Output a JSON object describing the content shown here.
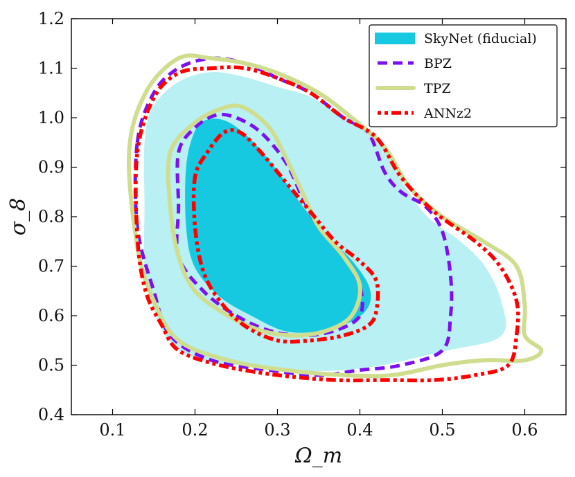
{
  "chart_data": {
    "type": "contour",
    "xlabel": "Ω_m",
    "ylabel": "σ_8",
    "xlim": [
      0.05,
      0.65
    ],
    "ylim": [
      0.4,
      1.2
    ],
    "xticks": [
      "0.1",
      "0.2",
      "0.3",
      "0.4",
      "0.5",
      "0.6"
    ],
    "yticks": [
      "0.4",
      "0.5",
      "0.6",
      "0.7",
      "0.8",
      "0.9",
      "1.0",
      "1.1",
      "1.2"
    ],
    "legend": {
      "placement": "top-right",
      "entries": [
        "SkyNet (fiducial)",
        "BPZ",
        "TPZ",
        "ANNz2"
      ]
    },
    "series": [
      {
        "name": "SkyNet (fiducial)",
        "style": "filled",
        "color": "#17c9e0",
        "color_light": "#b8f0f3",
        "outer": [
          [
            0.14,
            0.95
          ],
          [
            0.15,
            1.02
          ],
          [
            0.18,
            1.07
          ],
          [
            0.22,
            1.09
          ],
          [
            0.26,
            1.08
          ],
          [
            0.3,
            1.06
          ],
          [
            0.34,
            1.04
          ],
          [
            0.38,
            1.0
          ],
          [
            0.42,
            0.96
          ],
          [
            0.45,
            0.87
          ],
          [
            0.48,
            0.8
          ],
          [
            0.52,
            0.75
          ],
          [
            0.55,
            0.7
          ],
          [
            0.57,
            0.63
          ],
          [
            0.57,
            0.56
          ],
          [
            0.5,
            0.53
          ],
          [
            0.42,
            0.5
          ],
          [
            0.35,
            0.49
          ],
          [
            0.28,
            0.5
          ],
          [
            0.21,
            0.51
          ],
          [
            0.17,
            0.55
          ],
          [
            0.15,
            0.62
          ],
          [
            0.14,
            0.7
          ],
          [
            0.14,
            0.82
          ]
        ],
        "inner": [
          [
            0.19,
            0.9
          ],
          [
            0.2,
            0.97
          ],
          [
            0.215,
            0.995
          ],
          [
            0.24,
            0.99
          ],
          [
            0.27,
            0.95
          ],
          [
            0.3,
            0.89
          ],
          [
            0.33,
            0.82
          ],
          [
            0.36,
            0.76
          ],
          [
            0.39,
            0.71
          ],
          [
            0.41,
            0.66
          ],
          [
            0.41,
            0.62
          ],
          [
            0.39,
            0.59
          ],
          [
            0.35,
            0.57
          ],
          [
            0.31,
            0.57
          ],
          [
            0.27,
            0.6
          ],
          [
            0.23,
            0.64
          ],
          [
            0.2,
            0.7
          ],
          [
            0.19,
            0.78
          ]
        ]
      },
      {
        "name": "BPZ",
        "style": "dashed",
        "color": "#7b10f0",
        "outer": [
          [
            0.13,
            0.95
          ],
          [
            0.15,
            1.05
          ],
          [
            0.18,
            1.1
          ],
          [
            0.22,
            1.12
          ],
          [
            0.26,
            1.11
          ],
          [
            0.3,
            1.08
          ],
          [
            0.34,
            1.05
          ],
          [
            0.38,
            1.0
          ],
          [
            0.41,
            0.97
          ],
          [
            0.43,
            0.89
          ],
          [
            0.45,
            0.85
          ],
          [
            0.48,
            0.82
          ],
          [
            0.5,
            0.77
          ],
          [
            0.51,
            0.68
          ],
          [
            0.51,
            0.6
          ],
          [
            0.5,
            0.53
          ],
          [
            0.45,
            0.5
          ],
          [
            0.4,
            0.49
          ],
          [
            0.35,
            0.48
          ],
          [
            0.29,
            0.49
          ],
          [
            0.22,
            0.51
          ],
          [
            0.17,
            0.56
          ],
          [
            0.15,
            0.65
          ],
          [
            0.13,
            0.78
          ]
        ],
        "inner": [
          [
            0.18,
            0.93
          ],
          [
            0.2,
            0.98
          ],
          [
            0.225,
            1.005
          ],
          [
            0.25,
            1.0
          ],
          [
            0.28,
            0.97
          ],
          [
            0.31,
            0.91
          ],
          [
            0.33,
            0.84
          ],
          [
            0.35,
            0.78
          ],
          [
            0.38,
            0.72
          ],
          [
            0.4,
            0.66
          ],
          [
            0.4,
            0.6
          ],
          [
            0.37,
            0.57
          ],
          [
            0.33,
            0.56
          ],
          [
            0.29,
            0.57
          ],
          [
            0.25,
            0.6
          ],
          [
            0.21,
            0.65
          ],
          [
            0.18,
            0.72
          ],
          [
            0.18,
            0.82
          ]
        ]
      },
      {
        "name": "TPZ",
        "style": "solid",
        "color": "#cfde8e",
        "outer": [
          [
            0.12,
            0.93
          ],
          [
            0.14,
            1.05
          ],
          [
            0.18,
            1.12
          ],
          [
            0.22,
            1.12
          ],
          [
            0.26,
            1.11
          ],
          [
            0.3,
            1.09
          ],
          [
            0.35,
            1.05
          ],
          [
            0.39,
            1.0
          ],
          [
            0.43,
            0.94
          ],
          [
            0.46,
            0.86
          ],
          [
            0.5,
            0.8
          ],
          [
            0.55,
            0.75
          ],
          [
            0.59,
            0.7
          ],
          [
            0.6,
            0.62
          ],
          [
            0.6,
            0.56
          ],
          [
            0.62,
            0.53
          ],
          [
            0.6,
            0.51
          ],
          [
            0.55,
            0.51
          ],
          [
            0.5,
            0.5
          ],
          [
            0.44,
            0.48
          ],
          [
            0.38,
            0.48
          ],
          [
            0.31,
            0.49
          ],
          [
            0.24,
            0.51
          ],
          [
            0.18,
            0.55
          ],
          [
            0.15,
            0.63
          ],
          [
            0.13,
            0.74
          ]
        ],
        "inner": [
          [
            0.17,
            0.93
          ],
          [
            0.2,
            0.99
          ],
          [
            0.235,
            1.02
          ],
          [
            0.26,
            1.02
          ],
          [
            0.29,
            0.98
          ],
          [
            0.31,
            0.92
          ],
          [
            0.33,
            0.85
          ],
          [
            0.35,
            0.78
          ],
          [
            0.38,
            0.72
          ],
          [
            0.4,
            0.66
          ],
          [
            0.39,
            0.6
          ],
          [
            0.36,
            0.57
          ],
          [
            0.32,
            0.56
          ],
          [
            0.28,
            0.57
          ],
          [
            0.24,
            0.6
          ],
          [
            0.2,
            0.65
          ],
          [
            0.18,
            0.72
          ],
          [
            0.17,
            0.82
          ]
        ]
      },
      {
        "name": "ANNz2",
        "style": "dotdash",
        "color": "#fe0000",
        "outer": [
          [
            0.13,
            0.93
          ],
          [
            0.15,
            1.04
          ],
          [
            0.18,
            1.09
          ],
          [
            0.22,
            1.1
          ],
          [
            0.26,
            1.1
          ],
          [
            0.3,
            1.08
          ],
          [
            0.34,
            1.05
          ],
          [
            0.38,
            1.0
          ],
          [
            0.42,
            0.96
          ],
          [
            0.45,
            0.88
          ],
          [
            0.49,
            0.81
          ],
          [
            0.54,
            0.75
          ],
          [
            0.57,
            0.7
          ],
          [
            0.59,
            0.63
          ],
          [
            0.59,
            0.56
          ],
          [
            0.58,
            0.5
          ],
          [
            0.54,
            0.48
          ],
          [
            0.49,
            0.47
          ],
          [
            0.43,
            0.47
          ],
          [
            0.37,
            0.47
          ],
          [
            0.3,
            0.48
          ],
          [
            0.23,
            0.5
          ],
          [
            0.18,
            0.53
          ],
          [
            0.16,
            0.58
          ],
          [
            0.14,
            0.65
          ],
          [
            0.13,
            0.76
          ]
        ],
        "inner": [
          [
            0.2,
            0.88
          ],
          [
            0.215,
            0.93
          ],
          [
            0.235,
            0.97
          ],
          [
            0.255,
            0.97
          ],
          [
            0.28,
            0.93
          ],
          [
            0.31,
            0.87
          ],
          [
            0.34,
            0.81
          ],
          [
            0.37,
            0.75
          ],
          [
            0.4,
            0.71
          ],
          [
            0.42,
            0.67
          ],
          [
            0.42,
            0.61
          ],
          [
            0.41,
            0.58
          ],
          [
            0.38,
            0.56
          ],
          [
            0.34,
            0.55
          ],
          [
            0.3,
            0.55
          ],
          [
            0.26,
            0.58
          ],
          [
            0.23,
            0.63
          ],
          [
            0.21,
            0.69
          ],
          [
            0.2,
            0.78
          ]
        ]
      }
    ]
  }
}
